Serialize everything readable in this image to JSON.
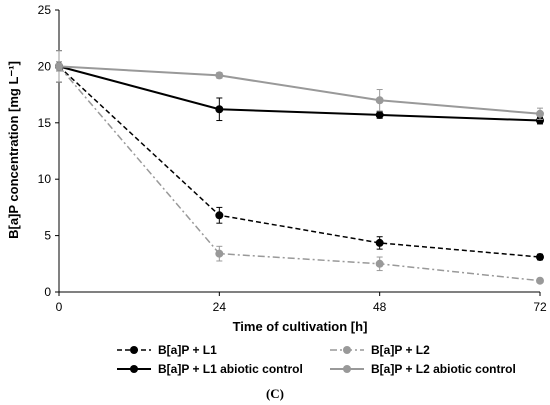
{
  "chart_data": {
    "type": "line",
    "xlabel": "Time of cultivation [h]",
    "ylabel": "B[a]P concentration [mg L⁻¹]",
    "panel_label": "(C)",
    "x": [
      0,
      24,
      48,
      72
    ],
    "xlim": [
      0,
      72
    ],
    "ylim": [
      0,
      25
    ],
    "x_ticks": [
      "0",
      "24",
      "48",
      "72"
    ],
    "y_ticks": [
      "0",
      "5",
      "10",
      "15",
      "20",
      "25"
    ],
    "grid": false,
    "legend_position": "bottom",
    "series": [
      {
        "name": "B[a]P + L1",
        "color": "#000000",
        "line_style": "dashed",
        "values": [
          20.0,
          6.8,
          4.35,
          3.1
        ],
        "errors": [
          1.4,
          0.7,
          0.55,
          0.25
        ]
      },
      {
        "name": "B[a]P + L2",
        "color": "#999999",
        "line_style": "dash-dot",
        "values": [
          20.0,
          3.4,
          2.5,
          1.0
        ],
        "errors": [
          1.4,
          0.65,
          0.6,
          0.2
        ]
      },
      {
        "name": "B[a]P + L1 abiotic control",
        "color": "#000000",
        "line_style": "solid",
        "values": [
          20.0,
          16.2,
          15.7,
          15.2
        ],
        "errors": [
          0.4,
          1.0,
          0.3,
          0.3
        ]
      },
      {
        "name": "B[a]P + L2 abiotic control",
        "color": "#999999",
        "line_style": "solid",
        "values": [
          20.0,
          19.2,
          17.0,
          15.8
        ],
        "errors": [
          0.4,
          0.25,
          0.95,
          0.5
        ]
      }
    ]
  }
}
